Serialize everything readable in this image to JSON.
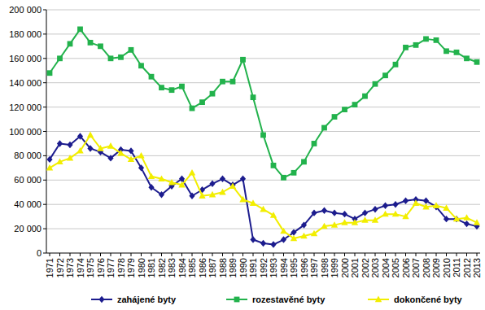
{
  "chart_data": {
    "type": "line",
    "categories": [
      "1971",
      "1972",
      "1973",
      "1974",
      "1975",
      "1976",
      "1977",
      "1978",
      "1979",
      "1980",
      "1981",
      "1982",
      "1983",
      "1984",
      "1985",
      "1986",
      "1987",
      "1988",
      "1989",
      "1990",
      "1991",
      "1992",
      "1993",
      "1994",
      "1995",
      "1996",
      "1997",
      "1998",
      "1999",
      "2000",
      "2001",
      "2002",
      "2003",
      "2004",
      "2005",
      "2006",
      "2007",
      "2008",
      "2009",
      "2010",
      "2011",
      "2012",
      "2013"
    ],
    "series": [
      {
        "name": "zahájené byty",
        "color": "#1c1c8e",
        "marker": "diamond",
        "values": [
          77000,
          90000,
          89000,
          96000,
          86000,
          83000,
          78000,
          85000,
          84000,
          70000,
          54000,
          48000,
          55000,
          61000,
          47000,
          52000,
          57000,
          61000,
          56000,
          61000,
          11000,
          8000,
          7000,
          11000,
          17000,
          23000,
          33000,
          35000,
          33000,
          32000,
          28000,
          33000,
          36000,
          39000,
          40000,
          43000,
          44000,
          43000,
          38000,
          28000,
          28000,
          24000,
          22000
        ]
      },
      {
        "name": "rozestavěné byty",
        "color": "#22b24c",
        "marker": "square",
        "values": [
          148000,
          160000,
          172000,
          184000,
          173000,
          170000,
          160000,
          161000,
          167000,
          154000,
          145000,
          136000,
          134000,
          137000,
          119000,
          124000,
          131000,
          141000,
          141000,
          159000,
          128000,
          97000,
          72000,
          62000,
          66000,
          75000,
          90000,
          103000,
          112000,
          118000,
          122000,
          129000,
          139000,
          146000,
          155000,
          169000,
          171000,
          176000,
          175000,
          166000,
          165000,
          160000,
          157000
        ]
      },
      {
        "name": "dokončené byty",
        "color": "#f2ee00",
        "marker": "triangle",
        "values": [
          70000,
          75000,
          78000,
          84000,
          97000,
          86000,
          88000,
          82000,
          77000,
          80000,
          63000,
          61000,
          58000,
          56000,
          66000,
          47000,
          48000,
          50000,
          55000,
          44000,
          41000,
          36000,
          31000,
          18000,
          12000,
          14000,
          16000,
          22000,
          23000,
          25000,
          25000,
          27000,
          27000,
          32000,
          32000,
          30000,
          41000,
          38000,
          39000,
          37000,
          28000,
          29000,
          25000
        ]
      }
    ],
    "ylim": [
      0,
      200000
    ],
    "yticks": [
      0,
      {
        "value": 20000,
        "label": "20 000"
      },
      {
        "value": 40000,
        "label": "40 000"
      },
      {
        "value": 60000,
        "label": "60 000"
      },
      {
        "value": 80000,
        "label": "80 000"
      },
      {
        "value": 100000,
        "label": "100 000"
      },
      {
        "value": 120000,
        "label": "120 000"
      },
      {
        "value": 140000,
        "label": "140 000"
      },
      {
        "value": 160000,
        "label": "160 000"
      },
      {
        "value": 180000,
        "label": "180 000"
      },
      {
        "value": 200000,
        "label": "200 000"
      }
    ],
    "grid": true,
    "legend": "bottom"
  }
}
